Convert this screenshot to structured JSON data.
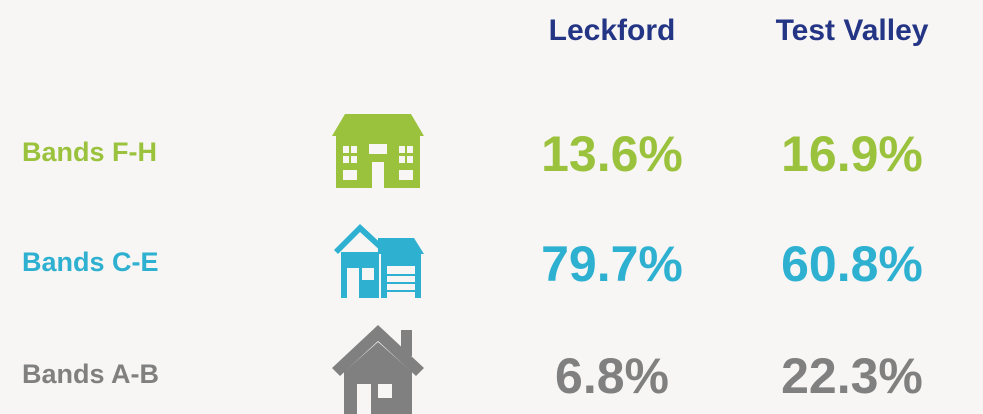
{
  "table": {
    "columns": [
      "Leckford",
      "Test Valley"
    ],
    "rows": [
      {
        "label": "Bands F-H",
        "color": "#9bc23c",
        "values": [
          "13.6%",
          "16.9%"
        ]
      },
      {
        "label": "Bands C-E",
        "color": "#2eb0d0",
        "values": [
          "79.7%",
          "60.8%"
        ]
      },
      {
        "label": "Bands A-B",
        "color": "#808080",
        "values": [
          "6.8%",
          "22.3%"
        ]
      }
    ]
  }
}
